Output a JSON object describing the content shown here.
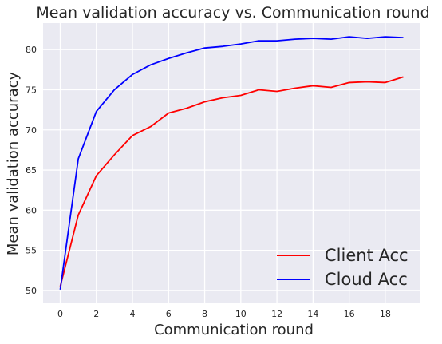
{
  "chart_data": {
    "type": "line",
    "title": "Mean validation accuracy vs. Communication round",
    "xlabel": "Communication round",
    "ylabel": "Mean validation accuracy",
    "x": [
      0,
      1,
      2,
      3,
      4,
      5,
      6,
      7,
      8,
      9,
      10,
      11,
      12,
      13,
      14,
      15,
      16,
      17,
      18,
      19
    ],
    "xlim": [
      -0.95,
      19.95
    ],
    "ylim": [
      48.4,
      83.3
    ],
    "xticks": [
      0,
      2,
      4,
      6,
      8,
      10,
      12,
      14,
      16,
      18
    ],
    "yticks": [
      50,
      55,
      60,
      65,
      70,
      75,
      80
    ],
    "grid": true,
    "background": "#eaeaf2",
    "legend_position": "lower-right",
    "series": [
      {
        "name": "Client Acc",
        "color": "#ff0000",
        "values": [
          50.5,
          59.4,
          64.3,
          66.9,
          69.3,
          70.4,
          72.1,
          72.7,
          73.5,
          74.0,
          74.3,
          75.0,
          74.8,
          75.2,
          75.5,
          75.3,
          75.9,
          76.0,
          75.9,
          76.6
        ]
      },
      {
        "name": "Cloud Acc",
        "color": "#0000ff",
        "values": [
          50.1,
          66.4,
          72.3,
          75.0,
          76.9,
          78.1,
          78.9,
          79.6,
          80.2,
          80.4,
          80.7,
          81.1,
          81.1,
          81.3,
          81.4,
          81.3,
          81.6,
          81.4,
          81.6,
          81.5
        ]
      }
    ]
  }
}
